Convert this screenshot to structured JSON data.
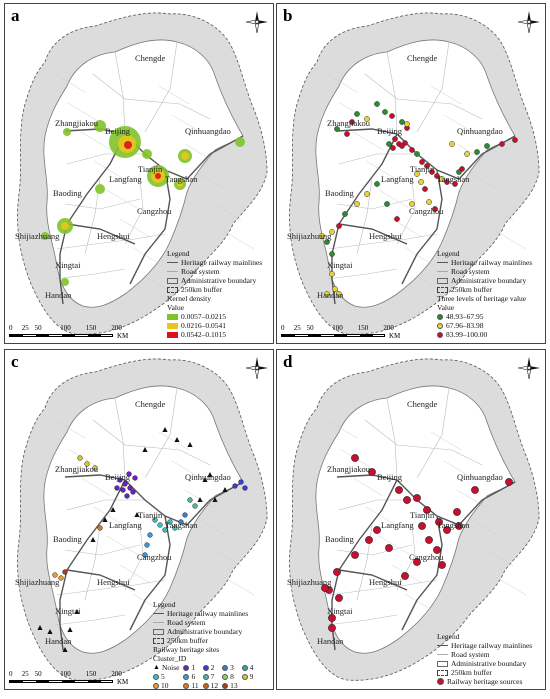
{
  "panels": [
    {
      "id": "a",
      "label": "a"
    },
    {
      "id": "b",
      "label": "b"
    },
    {
      "id": "c",
      "label": "c"
    },
    {
      "id": "d",
      "label": "d"
    }
  ],
  "cities": {
    "chengde": "Chengde",
    "zhangjiakou": "Zhangjiakou",
    "beijing": "Beijing",
    "qinhuangdao": "Qinhuangdao",
    "tianjin": "Tianjin",
    "tangshan": "Tangshan",
    "baoding": "Baoding",
    "langfang": "Langfang",
    "shijiazhuang": "Shijiazhuang",
    "cangzhou": "Cangzhou",
    "hengshui": "Hengshui",
    "xingtai": "Xingtai",
    "handan": "Handan"
  },
  "legend_common": {
    "title": "Legend",
    "mainline": "Heritage railway mainlines",
    "road": "Road system",
    "admin": "Administrative boundary",
    "buffer": "250km buffer",
    "buffer_d": "250km buffer"
  },
  "legend_a": {
    "heading": "Kernel density",
    "value": "Value",
    "classes": [
      "0.0057–0.0215",
      "0.0216–0.0541",
      "0.0542–0.1015"
    ],
    "colors": [
      "#7fc32a",
      "#e9c51d",
      "#e0101a"
    ]
  },
  "legend_b": {
    "heading": "Three levels of heritage value",
    "value": "Value",
    "classes": [
      "48.93–67.95",
      "67.96–83.98",
      "83.99–100.00"
    ],
    "colors": [
      "#2e8b2e",
      "#e8d23a",
      "#c8102e"
    ]
  },
  "legend_c": {
    "sites": "Railway heritage sites",
    "cluster": "Cluster_ID",
    "noise": "Noise",
    "ids": [
      "1",
      "2",
      "3",
      "4",
      "5",
      "6",
      "7",
      "8",
      "9",
      "10",
      "11",
      "12",
      "13"
    ],
    "colors": [
      "#6a1fc9",
      "#3b3bd6",
      "#3c7dc4",
      "#2aa6a6",
      "#33c4c4",
      "#3a9ad9",
      "#49b8a0",
      "#8fcf5a",
      "#d6c62a",
      "#e89b2b",
      "#d97a1a",
      "#c7621b",
      "#a83a1a"
    ]
  },
  "legend_d": {
    "sources": "Railway heritage sources",
    "color": "#c8102e"
  },
  "scale": {
    "ticks": [
      "0",
      "25",
      "50",
      "100",
      "150",
      "200"
    ],
    "unit": "KM"
  }
}
